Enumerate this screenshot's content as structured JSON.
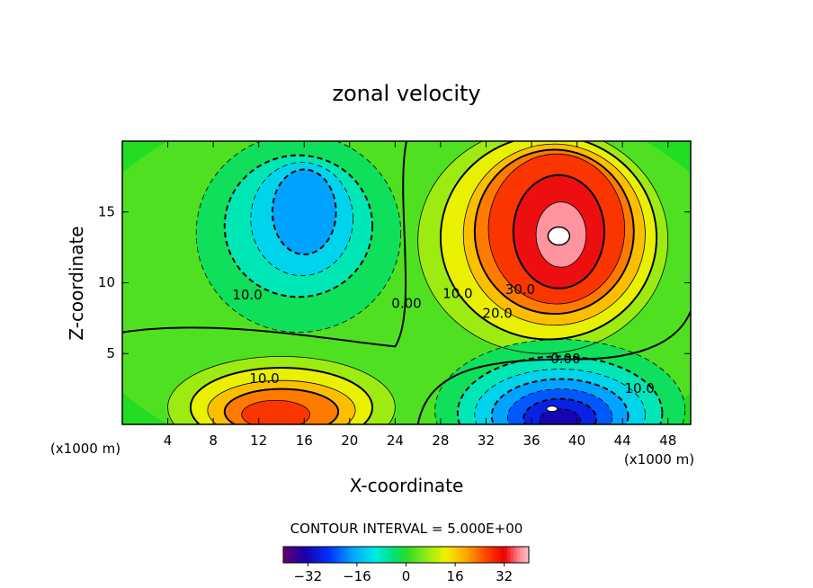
{
  "chart_data": {
    "type": "heatmap",
    "subtype": "filled contour",
    "title": "zonal velocity",
    "xlabel": "X-coordinate",
    "ylabel": "Z-coordinate",
    "x_unit_note": "(x1000 m)",
    "y_unit_note": "(x1000 m)",
    "xlim": [
      0,
      50
    ],
    "ylim": [
      0,
      20
    ],
    "x_ticks": [
      4,
      8,
      12,
      16,
      20,
      24,
      28,
      32,
      36,
      40,
      44,
      48
    ],
    "y_ticks": [
      5,
      10,
      15
    ],
    "x_tick_labels": [
      "4",
      "8",
      "12",
      "16",
      "20",
      "24",
      "28",
      "32",
      "36",
      "40",
      "44",
      "48"
    ],
    "y_tick_labels": [
      "5",
      "10",
      "15"
    ],
    "contour_interval_label": "CONTOUR INTERVAL = 5.000E+00",
    "contour_interval": 5.0,
    "value_range": [
      -40,
      40
    ],
    "colorbar_ticks": [
      -32,
      -16,
      0,
      16,
      32
    ],
    "colorbar_tick_labels": [
      "−32",
      "−16",
      "0",
      "16",
      "32"
    ],
    "contour_labels": [
      {
        "text": "10.0",
        "x": 11,
        "y": 9.1
      },
      {
        "text": "0.00",
        "x": 25,
        "y": 8.5
      },
      {
        "text": "10.0",
        "x": 29.5,
        "y": 9.2
      },
      {
        "text": "30.0",
        "x": 35,
        "y": 9.5
      },
      {
        "text": "20.0",
        "x": 33,
        "y": 7.8
      },
      {
        "text": "10.0",
        "x": 12.5,
        "y": 3.2
      },
      {
        "text": "0.00",
        "x": 39,
        "y": 4.6
      },
      {
        "text": "10.0",
        "x": 45.5,
        "y": 2.5
      }
    ],
    "features": [
      {
        "name": "upper-left negative cell",
        "x": 15.5,
        "y": 14,
        "peak": -22
      },
      {
        "name": "upper-right positive jet",
        "x": 38,
        "y": 13.5,
        "peak": 38
      },
      {
        "name": "lower-left positive cell",
        "x": 14,
        "y": 1.5,
        "peak": 28
      },
      {
        "name": "lower-right negative cell",
        "x": 38.5,
        "y": 1,
        "peak": -40
      }
    ]
  }
}
